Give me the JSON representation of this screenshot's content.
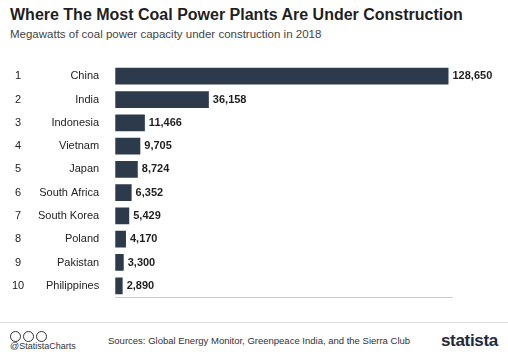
{
  "chart_data": {
    "type": "bar",
    "orientation": "horizontal",
    "title": "Where The Most Coal Power Plants Are Under Construction",
    "subtitle": "Megawatts of coal power capacity under construction in 2018",
    "ranks": [
      1,
      2,
      3,
      4,
      5,
      6,
      7,
      8,
      9,
      10
    ],
    "categories": [
      "China",
      "India",
      "Indonesia",
      "Vietnam",
      "Japan",
      "South Africa",
      "South Korea",
      "Poland",
      "Pakistan",
      "Philippines"
    ],
    "values": [
      128650,
      36158,
      11466,
      9705,
      8724,
      6352,
      5429,
      4170,
      3300,
      2890
    ],
    "value_labels": [
      "128,650",
      "36,158",
      "11,466",
      "9,705",
      "8,724",
      "6,352",
      "5,429",
      "4,170",
      "3,300",
      "2,890"
    ],
    "color": "#2c3a4b",
    "xlim": [
      0,
      130000
    ],
    "grid": false,
    "data_labels": true,
    "tick_labels": "y",
    "credit": "@StatistaCharts",
    "source": "Sources: Global Energy Monitor, Greenpeace India, and the Sierra Club",
    "brand": "statista"
  }
}
